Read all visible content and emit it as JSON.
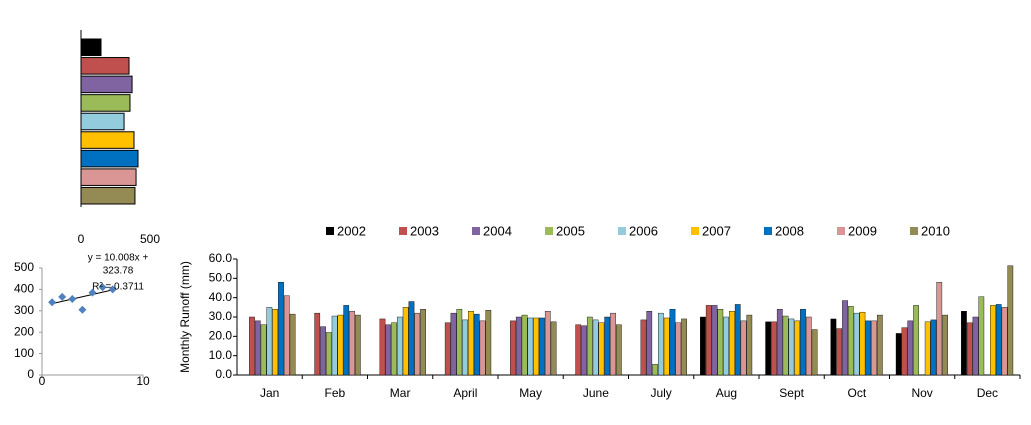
{
  "chart_data": [
    {
      "type": "hbar",
      "categories": [
        null,
        null,
        null,
        null,
        null,
        null,
        null,
        null,
        null
      ],
      "values": [
        145,
        348,
        370,
        355,
        312,
        384,
        413,
        399,
        391
      ],
      "colors": [
        "#000000",
        "#c0504d",
        "#8064a2",
        "#9bbb59",
        "#93cddd",
        "#ffc000",
        "#0070c0",
        "#d99694",
        "#948a54"
      ],
      "xlim": [
        0,
        500
      ],
      "xticks": [
        0,
        500
      ]
    },
    {
      "type": "scatter",
      "x": [
        1,
        2,
        3,
        4,
        5,
        6,
        7
      ],
      "values": [
        340,
        365,
        355,
        305,
        385,
        410,
        400
      ],
      "color": "#4f81bd",
      "annotations": [
        "y = 10.008x +",
        "323.78",
        "R² = 0.3711"
      ],
      "trendline": true,
      "xlim": [
        0,
        10
      ],
      "xticks": [
        0,
        10
      ],
      "ylim": [
        0,
        500
      ],
      "yticks": [
        0,
        100,
        200,
        300,
        400,
        500
      ]
    },
    {
      "type": "groupedbar",
      "y_label": "Monthly  Runoff (mm)",
      "categories": [
        "Jan",
        "Feb",
        "Mar",
        "April",
        "May",
        "June",
        "July",
        "Aug",
        "Sept",
        "Oct",
        "Nov",
        "Dec"
      ],
      "series": [
        {
          "name": "2002",
          "color": "#000000",
          "values": [
            null,
            null,
            null,
            null,
            null,
            null,
            null,
            30,
            27.5,
            29,
            21.5,
            33
          ]
        },
        {
          "name": "2003",
          "color": "#c0504d",
          "values": [
            30,
            32,
            29,
            27,
            28,
            26,
            28.5,
            36,
            27.5,
            24,
            24.5,
            27
          ]
        },
        {
          "name": "2004",
          "color": "#8064a2",
          "values": [
            28,
            25,
            26,
            32,
            30,
            25.5,
            33,
            36,
            34,
            38.5,
            28,
            30
          ]
        },
        {
          "name": "2005",
          "color": "#9bbb59",
          "values": [
            26,
            22,
            27,
            34,
            31,
            30,
            5.5,
            34,
            30.5,
            35.5,
            36,
            40.5
          ]
        },
        {
          "name": "2006",
          "color": "#93cddd",
          "values": [
            35,
            30.5,
            30,
            28.5,
            29.5,
            28.5,
            32,
            30,
            29,
            32,
            null,
            null
          ]
        },
        {
          "name": "2007",
          "color": "#ffc000",
          "values": [
            34,
            31,
            35,
            33,
            29.5,
            27,
            29.5,
            33,
            28,
            32.5,
            27.5,
            36
          ]
        },
        {
          "name": "2008",
          "color": "#0070c0",
          "values": [
            48,
            36,
            38,
            31.5,
            29.5,
            30,
            34,
            36.5,
            34,
            28,
            28.5,
            36.5
          ]
        },
        {
          "name": "2009",
          "color": "#d99694",
          "values": [
            41,
            33,
            32,
            28,
            33,
            32,
            27,
            28,
            30,
            28,
            48,
            35
          ]
        },
        {
          "name": "2010",
          "color": "#948a54",
          "values": [
            31.5,
            31,
            34,
            33.5,
            27.5,
            26,
            29,
            31,
            23.5,
            31,
            31,
            56.5
          ]
        }
      ],
      "ylim": [
        0,
        60
      ],
      "yticks": [
        {
          "value": 0,
          "label": "0.0"
        },
        {
          "value": 10,
          "label": "10.0"
        },
        {
          "value": 20,
          "label": "20.0"
        },
        {
          "value": 30,
          "label": "30.0"
        },
        {
          "value": 40,
          "label": "40.0"
        },
        {
          "value": 50,
          "label": "50.0"
        },
        {
          "value": 60,
          "label": "60.0"
        }
      ]
    }
  ]
}
